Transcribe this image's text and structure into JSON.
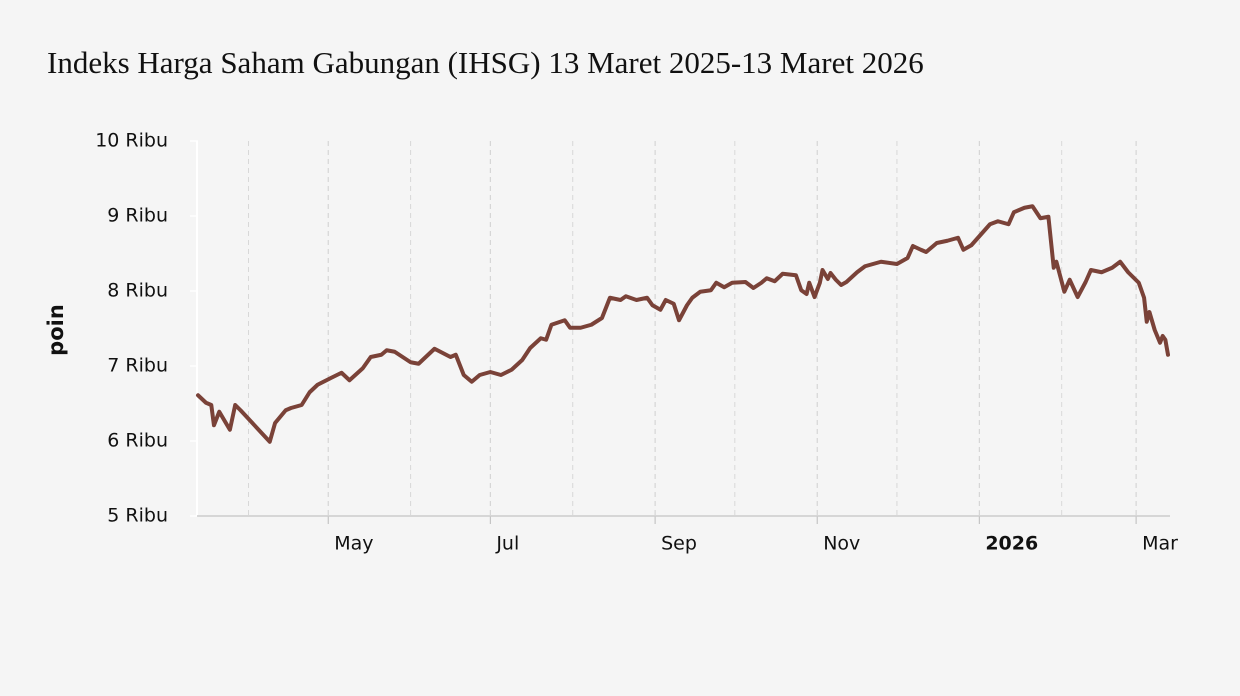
{
  "chart_data": {
    "type": "line",
    "title": "Indeks Harga Saham Gabungan (IHSG) 13 Maret 2025-13 Maret 2026",
    "y_label": "poin",
    "x": [
      "2025-03-13",
      "2025-03-16",
      "2025-03-18",
      "2025-03-19",
      "2025-03-21",
      "2025-03-24",
      "2025-03-25",
      "2025-03-27",
      "2025-03-29",
      "2025-04-09",
      "2025-04-11",
      "2025-04-15",
      "2025-04-17",
      "2025-04-21",
      "2025-04-24",
      "2025-04-27",
      "2025-05-02",
      "2025-05-06",
      "2025-05-09",
      "2025-05-14",
      "2025-05-17",
      "2025-05-21",
      "2025-05-23",
      "2025-05-26",
      "2025-06-01",
      "2025-06-04",
      "2025-06-10",
      "2025-06-16",
      "2025-06-18",
      "2025-06-21",
      "2025-06-24",
      "2025-06-27",
      "2025-07-01",
      "2025-07-05",
      "2025-07-09",
      "2025-07-13",
      "2025-07-16",
      "2025-07-20",
      "2025-07-22",
      "2025-07-24",
      "2025-07-29",
      "2025-07-31",
      "2025-08-04",
      "2025-08-08",
      "2025-08-12",
      "2025-08-15",
      "2025-08-19",
      "2025-08-21",
      "2025-08-25",
      "2025-08-29",
      "2025-08-31",
      "2025-09-03",
      "2025-09-05",
      "2025-09-08",
      "2025-09-10",
      "2025-09-13",
      "2025-09-15",
      "2025-09-18",
      "2025-09-22",
      "2025-09-24",
      "2025-09-27",
      "2025-09-30",
      "2025-10-05",
      "2025-10-08",
      "2025-10-11",
      "2025-10-13",
      "2025-10-16",
      "2025-10-19",
      "2025-10-24",
      "2025-10-26",
      "2025-10-28",
      "2025-10-29",
      "2025-10-31",
      "2025-11-02",
      "2025-11-03",
      "2025-11-05",
      "2025-11-06",
      "2025-11-08",
      "2025-11-10",
      "2025-11-12",
      "2025-11-16",
      "2025-11-19",
      "2025-11-22",
      "2025-11-25",
      "2025-12-01",
      "2025-12-05",
      "2025-12-07",
      "2025-12-10",
      "2025-12-12",
      "2025-12-16",
      "2025-12-20",
      "2025-12-24",
      "2025-12-26",
      "2025-12-29",
      "2026-01-01",
      "2026-01-05",
      "2026-01-08",
      "2026-01-12",
      "2026-01-14",
      "2026-01-18",
      "2026-01-21",
      "2026-01-24",
      "2026-01-27",
      "2026-01-29",
      "2026-01-30",
      "2026-02-02",
      "2026-02-04",
      "2026-02-07",
      "2026-02-10",
      "2026-02-12",
      "2026-02-16",
      "2026-02-20",
      "2026-02-23",
      "2026-02-26",
      "2026-03-02",
      "2026-03-04",
      "2026-03-05",
      "2026-03-06",
      "2026-03-08",
      "2026-03-10",
      "2026-03-11",
      "2026-03-12",
      "2026-03-13"
    ],
    "series": [
      {
        "name": "IHSG",
        "color": "#7a4238",
        "values": [
          6610,
          6510,
          6480,
          6210,
          6390,
          6210,
          6150,
          6480,
          6410,
          5990,
          6240,
          6410,
          6440,
          6480,
          6650,
          6750,
          6840,
          6910,
          6810,
          6970,
          7120,
          7150,
          7210,
          7190,
          7050,
          7030,
          7230,
          7120,
          7150,
          6880,
          6790,
          6880,
          6920,
          6880,
          6950,
          7080,
          7240,
          7370,
          7350,
          7550,
          7610,
          7510,
          7510,
          7550,
          7640,
          7910,
          7880,
          7930,
          7880,
          7910,
          7810,
          7750,
          7880,
          7830,
          7610,
          7810,
          7910,
          7990,
          8010,
          8110,
          8050,
          8110,
          8120,
          8040,
          8110,
          8170,
          8130,
          8230,
          8210,
          8010,
          7960,
          8110,
          7920,
          8110,
          8280,
          8160,
          8240,
          8150,
          8080,
          8120,
          8250,
          8330,
          8360,
          8390,
          8360,
          8440,
          8600,
          8550,
          8520,
          8640,
          8670,
          8710,
          8550,
          8610,
          8730,
          8890,
          8930,
          8890,
          9050,
          9110,
          9130,
          8970,
          8990,
          8310,
          8390,
          7990,
          8150,
          7920,
          8120,
          8280,
          8250,
          8310,
          8390,
          8250,
          8110,
          7910,
          7590,
          7720,
          7480,
          7310,
          7400,
          7350,
          7150
        ]
      }
    ],
    "xlim": [
      "2025-03-13",
      "2026-03-13"
    ],
    "xticks": [
      {
        "value": "2025-05-01",
        "label": "May"
      },
      {
        "value": "2025-07-01",
        "label": "Jul"
      },
      {
        "value": "2025-09-01",
        "label": "Sep"
      },
      {
        "value": "2025-11-01",
        "label": "Nov"
      },
      {
        "value": "2026-01-01",
        "label": "2026",
        "bold": true
      },
      {
        "value": "2026-03-01",
        "label": "Mar"
      }
    ],
    "x_minor_ticks": [
      "2025-04-01",
      "2025-06-01",
      "2025-08-01",
      "2025-10-01",
      "2025-12-01",
      "2026-02-01"
    ],
    "ylim": [
      5000,
      10000
    ],
    "yticks": [
      {
        "value": 5000,
        "label": "5 Ribu"
      },
      {
        "value": 6000,
        "label": "6 Ribu"
      },
      {
        "value": 7000,
        "label": "7 Ribu"
      },
      {
        "value": 8000,
        "label": "8 Ribu"
      },
      {
        "value": 9000,
        "label": "9 Ribu"
      },
      {
        "value": 10000,
        "label": "10 Ribu"
      }
    ],
    "grid": true
  }
}
